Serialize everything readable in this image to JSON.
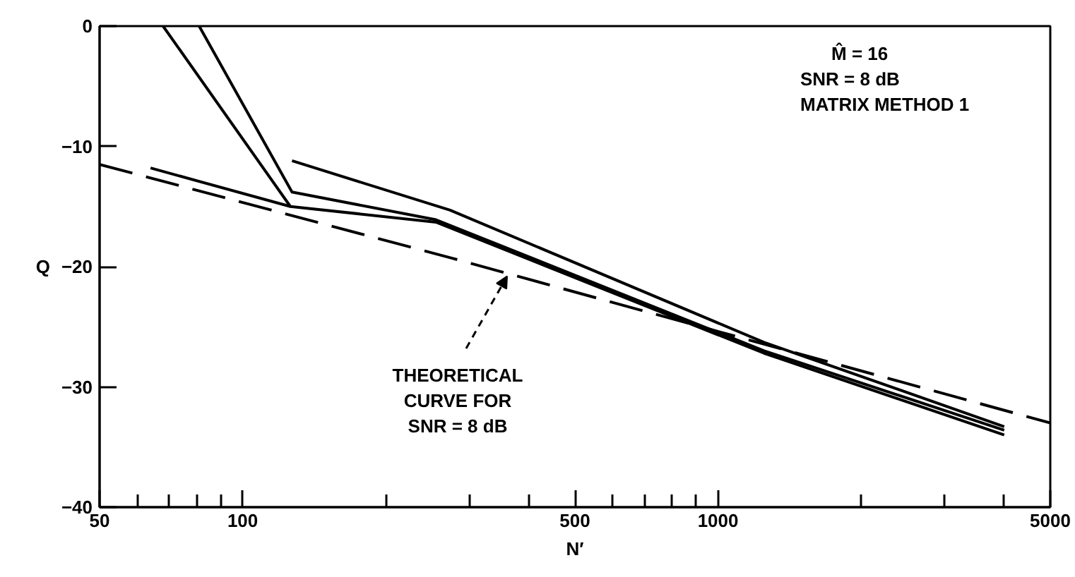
{
  "chart_data": {
    "type": "line",
    "xlabel": "N′",
    "ylabel": "Q",
    "log": "x",
    "grid": false,
    "marker": "none",
    "xlim": [
      50,
      5000
    ],
    "ylim": [
      -40,
      0
    ],
    "xticks": [
      50,
      {
        "value": 60,
        "label": null
      },
      {
        "value": 70,
        "label": null
      },
      {
        "value": 80,
        "label": null
      },
      {
        "value": 90,
        "label": null
      },
      100,
      {
        "value": 200,
        "label": null
      },
      {
        "value": 300,
        "label": null
      },
      {
        "value": 400,
        "label": null
      },
      500,
      {
        "value": 600,
        "label": null
      },
      {
        "value": 700,
        "label": null
      },
      {
        "value": 800,
        "label": null
      },
      {
        "value": 900,
        "label": null
      },
      1000,
      {
        "value": 2000,
        "label": null
      },
      {
        "value": 3000,
        "label": null
      },
      {
        "value": 4000,
        "label": null
      },
      5000
    ],
    "yticks": [
      0,
      -10,
      -20,
      -30,
      -40
    ],
    "series": [
      {
        "color": "#000000",
        "line_style": "solid",
        "x": [
          68,
          126,
          255,
          1250,
          4000
        ],
        "values": [
          0,
          -15.0,
          -16.3,
          -27.2,
          -34.0
        ]
      },
      {
        "color": "#000000",
        "line_style": "solid",
        "x": [
          81,
          127,
          255,
          1250,
          4000
        ],
        "values": [
          0,
          -13.8,
          -16.1,
          -27.0,
          -33.6
        ]
      },
      {
        "color": "#000000",
        "line_style": "solid",
        "x": [
          127,
          273,
          1250,
          4000
        ],
        "values": [
          -11.2,
          -15.3,
          -26.3,
          -33.3
        ]
      },
      {
        "color": "#000000",
        "line_style": "solid",
        "x": [
          64,
          126
        ],
        "values": [
          -11.8,
          -15.0
        ]
      },
      {
        "color": "#000000",
        "line_style": "dashed",
        "x": [
          50,
          276,
          5000
        ],
        "values": [
          -11.5,
          -19.3,
          -33.0
        ]
      }
    ],
    "annotations": [
      "M̂ = 16",
      "SNR =  8 dB",
      "MATRIX METHOD 1",
      {
        "text": "THEORETICAL\nCURVE FOR\nSNR = 8 dB",
        "x": 360,
        "y": -20.8
      }
    ]
  }
}
